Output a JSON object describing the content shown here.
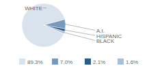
{
  "chart_data": {
    "type": "pie",
    "categories": [
      "WHITE",
      "A.I.",
      "HISPANIC",
      "BLACK"
    ],
    "values": [
      89.3,
      7.0,
      2.1,
      1.6
    ],
    "value_labels": [
      "89.3%",
      "7.0%",
      "2.1%",
      "1.6%"
    ],
    "colors": [
      "#d9e3ed",
      "#7899bc",
      "#2e5b84",
      "#a7bfd7"
    ],
    "legend": "bottom"
  }
}
